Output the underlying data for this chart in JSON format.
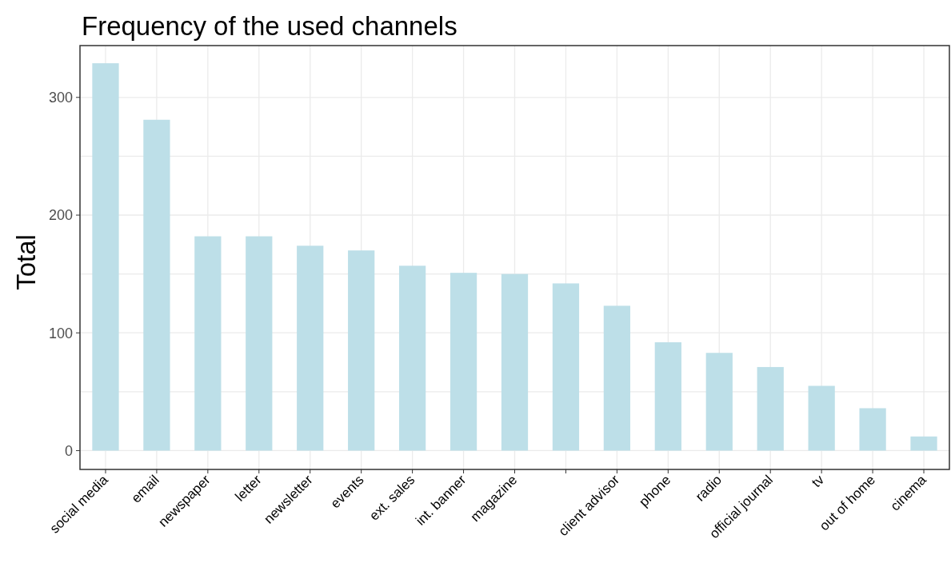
{
  "chart_data": {
    "type": "bar",
    "title": "Frequency of the used channels",
    "ylabel": "Total",
    "categories": [
      "social media",
      "email",
      "newspaper",
      "letter",
      "newsletter",
      "events",
      "ext. sales",
      "int. banner",
      "magazine",
      null,
      "client advisor",
      "phone",
      "radio",
      "official journal",
      "tv",
      "out of home",
      "cinema"
    ],
    "values": [
      329,
      281,
      182,
      182,
      174,
      170,
      157,
      151,
      150,
      142,
      123,
      92,
      83,
      71,
      55,
      36,
      12
    ],
    "color": "#bddfe8",
    "ylim": [
      -16,
      344
    ],
    "yticks": [
      0,
      {
        "value": 50,
        "label": null
      },
      100,
      {
        "value": 150,
        "label": null
      },
      200,
      {
        "value": 250,
        "label": null
      },
      300
    ],
    "grid": true
  }
}
